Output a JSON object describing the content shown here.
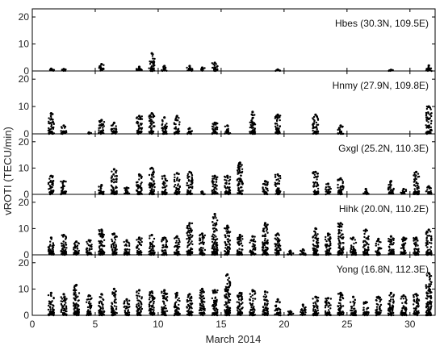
{
  "figure": {
    "xlabel": "March 2014",
    "ylabel": "vROTI (TECU/min)"
  },
  "chart_data": [
    {
      "type": "scatter",
      "station": "Hbes (30.3N, 109.5E)",
      "xlim": [
        0,
        32
      ],
      "ylim": [
        0,
        23
      ],
      "xticks": [
        0,
        5,
        10,
        15,
        20,
        25,
        30
      ],
      "yticks": [
        0,
        10,
        20
      ],
      "x": [
        1,
        2,
        5,
        8,
        9,
        10,
        12,
        13,
        14,
        19,
        28,
        31
      ],
      "y": [
        0.8,
        0.7,
        2.5,
        1.5,
        6.5,
        1.8,
        1.8,
        1.2,
        3.0,
        0.5,
        0.4,
        2.0
      ]
    },
    {
      "type": "scatter",
      "station": "Hnmy (27.9N, 109.8E)",
      "xlim": [
        0,
        32
      ],
      "ylim": [
        0,
        23
      ],
      "xticks": [
        0,
        5,
        10,
        15,
        20,
        25,
        30
      ],
      "yticks": [
        0,
        10,
        20
      ],
      "x": [
        1,
        2,
        4,
        5,
        6,
        8,
        9,
        10,
        11,
        12,
        14,
        15,
        17,
        19,
        22,
        24,
        31
      ],
      "y": [
        7.5,
        3.0,
        0.5,
        5.0,
        4.0,
        6.5,
        7.5,
        6.0,
        6.5,
        2.0,
        4.0,
        3.0,
        8.0,
        7.0,
        7.0,
        3.0,
        10.0
      ]
    },
    {
      "type": "scatter",
      "station": "Gxgl (25.2N, 110.3E)",
      "xlim": [
        0,
        32
      ],
      "ylim": [
        0,
        23
      ],
      "xticks": [
        0,
        5,
        10,
        15,
        20,
        25,
        30
      ],
      "yticks": [
        0,
        10,
        20
      ],
      "x": [
        1,
        2,
        5,
        6,
        7,
        8,
        9,
        10,
        11,
        12,
        13,
        14,
        15,
        16,
        18,
        19,
        22,
        23,
        24,
        26,
        28,
        29,
        30,
        31
      ],
      "y": [
        7.0,
        5.0,
        3.5,
        9.5,
        2.5,
        7.5,
        10.0,
        7.0,
        8.0,
        8.5,
        1.0,
        7.0,
        7.0,
        12.0,
        5.0,
        7.5,
        8.5,
        4.0,
        6.0,
        2.0,
        5.0,
        2.0,
        8.5,
        3.0
      ]
    },
    {
      "type": "scatter",
      "station": "Hihk (20.0N, 110.2E)",
      "xlim": [
        0,
        32
      ],
      "ylim": [
        0,
        23
      ],
      "xticks": [
        0,
        5,
        10,
        15,
        20,
        25,
        30
      ],
      "yticks": [
        0,
        10,
        20
      ],
      "x": [
        1,
        2,
        3,
        4,
        5,
        6,
        7,
        8,
        9,
        10,
        11,
        12,
        13,
        14,
        15,
        16,
        17,
        18,
        19,
        20,
        21,
        22,
        23,
        24,
        25,
        26,
        27,
        28,
        29,
        30,
        31
      ],
      "y": [
        6.5,
        7.5,
        5.0,
        5.5,
        9.5,
        8.0,
        5.5,
        6.5,
        7.5,
        6.5,
        7.0,
        12.0,
        8.0,
        15.5,
        11.0,
        7.5,
        7.0,
        12.0,
        8.0,
        1.5,
        2.0,
        10.0,
        8.0,
        12.0,
        6.5,
        9.5,
        6.0,
        7.0,
        6.5,
        6.5,
        9.5
      ]
    },
    {
      "type": "scatter",
      "station": "Yong (16.8N, 112.3E)",
      "xlim": [
        0,
        32
      ],
      "ylim": [
        0,
        23
      ],
      "xticks": [
        0,
        5,
        10,
        15,
        20,
        25,
        30
      ],
      "yticks": [
        0,
        10,
        20
      ],
      "x": [
        1,
        2,
        3,
        4,
        5,
        6,
        7,
        8,
        9,
        10,
        11,
        12,
        13,
        14,
        15,
        16,
        17,
        18,
        19,
        20,
        21,
        22,
        23,
        24,
        25,
        26,
        27,
        28,
        29,
        30,
        31
      ],
      "y": [
        8.5,
        8.0,
        11.5,
        7.5,
        8.0,
        10.0,
        6.0,
        9.5,
        9.0,
        9.5,
        8.5,
        8.0,
        10.0,
        9.5,
        15.5,
        8.5,
        9.5,
        9.0,
        6.0,
        1.5,
        4.0,
        7.0,
        6.5,
        8.5,
        7.0,
        5.0,
        7.0,
        8.5,
        7.5,
        8.0,
        16.0
      ]
    }
  ]
}
